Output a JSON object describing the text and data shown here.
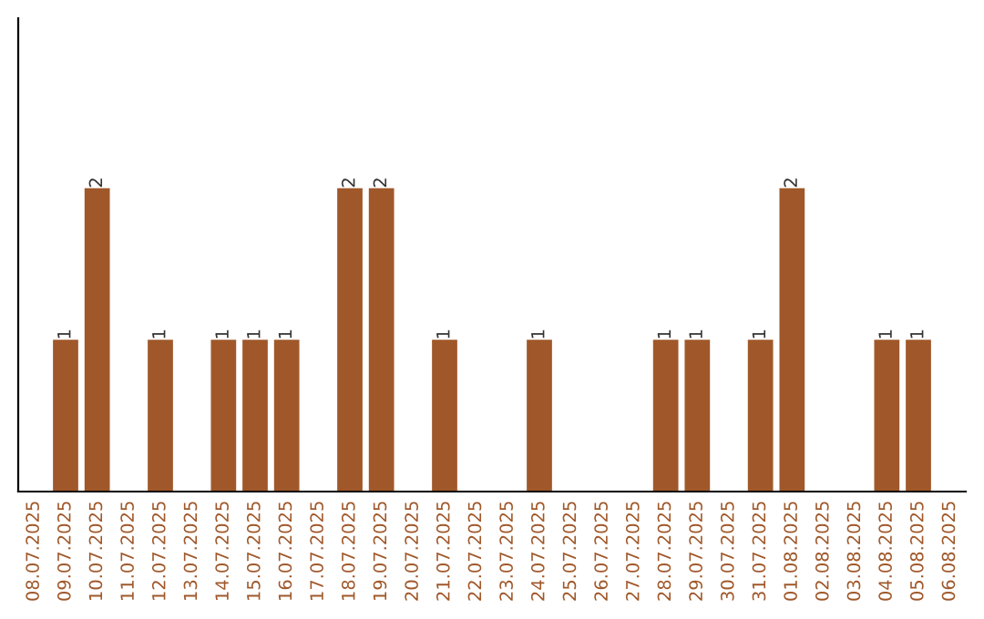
{
  "chart_data": {
    "type": "bar",
    "categories": [
      "08.07.2025",
      "09.07.2025",
      "10.07.2025",
      "11.07.2025",
      "12.07.2025",
      "13.07.2025",
      "14.07.2025",
      "15.07.2025",
      "16.07.2025",
      "17.07.2025",
      "18.07.2025",
      "19.07.2025",
      "20.07.2025",
      "21.07.2025",
      "22.07.2025",
      "23.07.2025",
      "24.07.2025",
      "25.07.2025",
      "26.07.2025",
      "27.07.2025",
      "28.07.2025",
      "29.07.2025",
      "30.07.2025",
      "31.07.2025",
      "01.08.2025",
      "02.08.2025",
      "03.08.2025",
      "04.08.2025",
      "05.08.2025",
      "06.08.2025"
    ],
    "values": [
      0,
      1,
      2,
      0,
      1,
      0,
      1,
      1,
      1,
      0,
      2,
      2,
      0,
      1,
      0,
      0,
      1,
      0,
      0,
      0,
      1,
      1,
      0,
      1,
      2,
      0,
      0,
      1,
      1,
      0
    ],
    "value_labels": [
      null,
      "1",
      "2",
      null,
      "1",
      null,
      "1",
      "1",
      "1",
      null,
      "2",
      "2",
      null,
      "1",
      null,
      null,
      "1",
      null,
      null,
      null,
      "1",
      "1",
      null,
      "1",
      "2",
      null,
      null,
      "1",
      "1",
      null
    ],
    "color": "#a0582a",
    "grid": false,
    "legend": false
  }
}
